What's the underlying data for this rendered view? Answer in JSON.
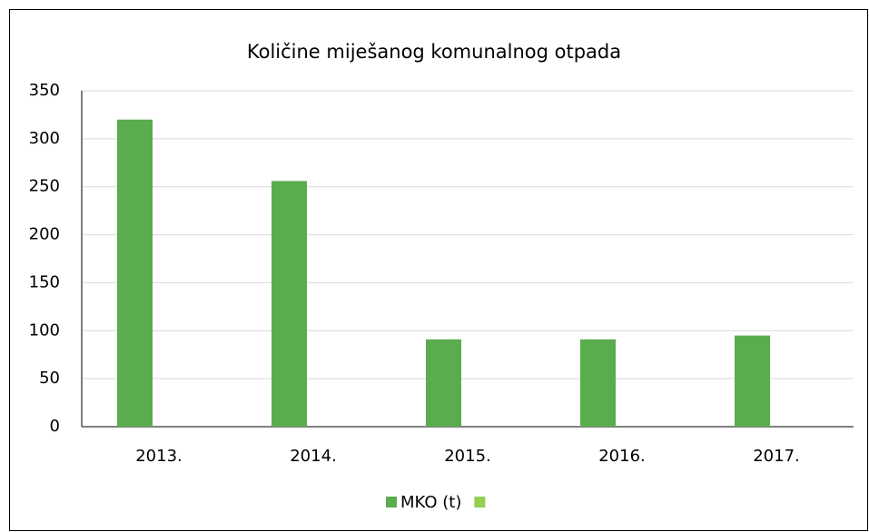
{
  "chart_data": {
    "type": "bar",
    "title": "Količine miješanog komunalnog otpada",
    "categories": [
      "2013.",
      "2014.",
      "2015.",
      "2016.",
      "2017."
    ],
    "series": [
      {
        "name": "MKO (t)",
        "color": "#5aac4e",
        "values": [
          320,
          256,
          91,
          91,
          95
        ]
      },
      {
        "color": "#92d050",
        "values": [
          null,
          null,
          null,
          null,
          null
        ]
      }
    ],
    "ylim": [
      0,
      350
    ],
    "yticks": [
      0,
      50,
      100,
      150,
      200,
      250,
      300,
      350
    ],
    "grid": true,
    "legend": "bottom"
  }
}
